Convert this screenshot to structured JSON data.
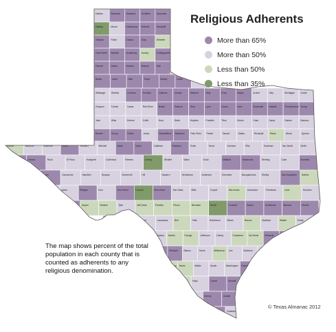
{
  "map": {
    "title": "Religious Adherents",
    "legend": [
      {
        "label": "More than 65%",
        "color": "#9d88ad"
      },
      {
        "label": "More than 50%",
        "color": "#d7d1e0"
      },
      {
        "label": "Less than 50%",
        "color": "#ccd8bc"
      },
      {
        "label": "Less than 35%",
        "color": "#819a6a"
      }
    ],
    "note": "The map shows percent of the total population in each county that is counted as adherents to any religious denomination.",
    "credit": "© Texas Almanac 2012",
    "colors": {
      "more_than_65": "#9d88ad",
      "more_than_50": "#d7d1e0",
      "less_than_50": "#ccd8bc",
      "less_than_35": "#819a6a",
      "county_border": "#ffffff",
      "state_outline": "#555555"
    },
    "county_labels": [
      {
        "name": "Dallam",
        "cat": 1
      },
      {
        "name": "Sherman",
        "cat": 0
      },
      {
        "name": "Hansford",
        "cat": 0
      },
      {
        "name": "Ochiltree",
        "cat": 0
      },
      {
        "name": "Lipscomb",
        "cat": 0
      },
      {
        "name": "Hartley",
        "cat": 3
      },
      {
        "name": "Moore",
        "cat": 1
      },
      {
        "name": "Hutchinson",
        "cat": 0
      },
      {
        "name": "Roberts",
        "cat": 0
      },
      {
        "name": "Hemphill",
        "cat": 0
      },
      {
        "name": "Oldham",
        "cat": 0
      },
      {
        "name": "Potter",
        "cat": 1
      },
      {
        "name": "Carson",
        "cat": 0
      },
      {
        "name": "Gray",
        "cat": 0
      },
      {
        "name": "Wheeler",
        "cat": 2
      },
      {
        "name": "Deaf Smith",
        "cat": 0
      },
      {
        "name": "Randall",
        "cat": 0
      },
      {
        "name": "Armstrong",
        "cat": 0
      },
      {
        "name": "Donley",
        "cat": 2
      },
      {
        "name": "Collingsworth",
        "cat": 0
      },
      {
        "name": "Parmer",
        "cat": 0
      },
      {
        "name": "Castro",
        "cat": 0
      },
      {
        "name": "Swisher",
        "cat": 0
      },
      {
        "name": "Briscoe",
        "cat": 0
      },
      {
        "name": "Hall",
        "cat": 0
      },
      {
        "name": "Childress",
        "cat": 2
      },
      {
        "name": "Bailey",
        "cat": 0
      },
      {
        "name": "Lamb",
        "cat": 0
      },
      {
        "name": "Hale",
        "cat": 0
      },
      {
        "name": "Floyd",
        "cat": 0
      },
      {
        "name": "Motley",
        "cat": 0
      },
      {
        "name": "Cottle",
        "cat": 0
      },
      {
        "name": "Hardeman",
        "cat": 1
      },
      {
        "name": "Wilbarger",
        "cat": 1
      },
      {
        "name": "Wichita",
        "cat": 1
      },
      {
        "name": "Cochran",
        "cat": 0
      },
      {
        "name": "Hockley",
        "cat": 0
      },
      {
        "name": "Lubbock",
        "cat": 0
      },
      {
        "name": "Crosby",
        "cat": 0
      },
      {
        "name": "Dickens",
        "cat": 0
      },
      {
        "name": "King",
        "cat": 0
      },
      {
        "name": "Knox",
        "cat": 0
      },
      {
        "name": "Baylor",
        "cat": 0
      },
      {
        "name": "Archer",
        "cat": 1
      },
      {
        "name": "Clay",
        "cat": 1
      },
      {
        "name": "Montague",
        "cat": 1
      },
      {
        "name": "Cooke",
        "cat": 1
      },
      {
        "name": "Grayson",
        "cat": 1
      },
      {
        "name": "Fannin",
        "cat": 1
      },
      {
        "name": "Lamar",
        "cat": 1
      },
      {
        "name": "Red River",
        "cat": 1
      },
      {
        "name": "Bowie",
        "cat": 0
      },
      {
        "name": "Yoakum",
        "cat": 0
      },
      {
        "name": "Terry",
        "cat": 0
      },
      {
        "name": "Lynn",
        "cat": 0
      },
      {
        "name": "Garza",
        "cat": 0
      },
      {
        "name": "Kent",
        "cat": 0
      },
      {
        "name": "Stonewall",
        "cat": 0
      },
      {
        "name": "Haskell",
        "cat": 0
      },
      {
        "name": "Throckmorton",
        "cat": 0
      },
      {
        "name": "Young",
        "cat": 0
      },
      {
        "name": "Jack",
        "cat": 1
      },
      {
        "name": "Wise",
        "cat": 1
      },
      {
        "name": "Denton",
        "cat": 1
      },
      {
        "name": "Collin",
        "cat": 1
      },
      {
        "name": "Hunt",
        "cat": 1
      },
      {
        "name": "Delta",
        "cat": 1
      },
      {
        "name": "Hopkins",
        "cat": 1
      },
      {
        "name": "Franklin",
        "cat": 1
      },
      {
        "name": "Titus",
        "cat": 1
      },
      {
        "name": "Morris",
        "cat": 1
      },
      {
        "name": "Cass",
        "cat": 1
      },
      {
        "name": "Camp",
        "cat": 1
      },
      {
        "name": "Gaines",
        "cat": 1
      },
      {
        "name": "Dawson",
        "cat": 1
      },
      {
        "name": "Borden",
        "cat": 0
      },
      {
        "name": "Scurry",
        "cat": 0
      },
      {
        "name": "Fisher",
        "cat": 0
      },
      {
        "name": "Jones",
        "cat": 1
      },
      {
        "name": "Shackelford",
        "cat": 0
      },
      {
        "name": "Stephens",
        "cat": 0
      },
      {
        "name": "Palo Pinto",
        "cat": 1
      },
      {
        "name": "Parker",
        "cat": 1
      },
      {
        "name": "Tarrant",
        "cat": 1
      },
      {
        "name": "Dallas",
        "cat": 1
      },
      {
        "name": "Rockwall",
        "cat": 1
      },
      {
        "name": "Rains",
        "cat": 2
      },
      {
        "name": "Wood",
        "cat": 1
      },
      {
        "name": "Upshur",
        "cat": 1
      },
      {
        "name": "Marion",
        "cat": 2
      },
      {
        "name": "Harrison",
        "cat": 1
      },
      {
        "name": "Andrews",
        "cat": 1
      },
      {
        "name": "Martin",
        "cat": 0
      },
      {
        "name": "Howard",
        "cat": 1
      },
      {
        "name": "Mitchell",
        "cat": 1
      },
      {
        "name": "Nolan",
        "cat": 0
      },
      {
        "name": "Taylor",
        "cat": 0
      },
      {
        "name": "Callahan",
        "cat": 1
      },
      {
        "name": "Eastland",
        "cat": 0
      },
      {
        "name": "Erath",
        "cat": 1
      },
      {
        "name": "Hood",
        "cat": 1
      },
      {
        "name": "Johnson",
        "cat": 1
      },
      {
        "name": "Ellis",
        "cat": 1
      },
      {
        "name": "Kaufman",
        "cat": 1
      },
      {
        "name": "Van Zandt",
        "cat": 1
      },
      {
        "name": "Smith",
        "cat": 1
      },
      {
        "name": "Gregg",
        "cat": 0
      },
      {
        "name": "Panola",
        "cat": 0
      },
      {
        "name": "Rusk",
        "cat": 1
      },
      {
        "name": "El Paso",
        "cat": 1
      },
      {
        "name": "Hudspeth",
        "cat": 1
      },
      {
        "name": "Culberson",
        "cat": 1
      },
      {
        "name": "Reeves",
        "cat": 1
      },
      {
        "name": "Loving",
        "cat": 3
      },
      {
        "name": "Winkler",
        "cat": 1
      },
      {
        "name": "Ward",
        "cat": 1
      },
      {
        "name": "Ector",
        "cat": 1
      },
      {
        "name": "Midland",
        "cat": 0
      },
      {
        "name": "Glasscock",
        "cat": 0
      },
      {
        "name": "Sterling",
        "cat": 1
      },
      {
        "name": "Coke",
        "cat": 1
      },
      {
        "name": "Runnels",
        "cat": 0
      },
      {
        "name": "Coleman",
        "cat": 1
      },
      {
        "name": "Brown",
        "cat": 0
      },
      {
        "name": "Comanche",
        "cat": 1
      },
      {
        "name": "Hamilton",
        "cat": 1
      },
      {
        "name": "Bosque",
        "cat": 1
      },
      {
        "name": "Somervell",
        "cat": 1
      },
      {
        "name": "Hill",
        "cat": 1
      },
      {
        "name": "Navarro",
        "cat": 1
      },
      {
        "name": "Henderson",
        "cat": 1
      },
      {
        "name": "Anderson",
        "cat": 1
      },
      {
        "name": "Cherokee",
        "cat": 1
      },
      {
        "name": "Nacogdoches",
        "cat": 1
      },
      {
        "name": "Shelby",
        "cat": 1
      },
      {
        "name": "San Augustine",
        "cat": 0
      },
      {
        "name": "Sabine",
        "cat": 2
      },
      {
        "name": "Crane",
        "cat": 1
      },
      {
        "name": "Upton",
        "cat": 1
      },
      {
        "name": "Reagan",
        "cat": 0
      },
      {
        "name": "Irion",
        "cat": 1
      },
      {
        "name": "Tom Green",
        "cat": 0
      },
      {
        "name": "Concho",
        "cat": 3
      },
      {
        "name": "McCulloch",
        "cat": 0
      },
      {
        "name": "San Saba",
        "cat": 1
      },
      {
        "name": "Mills",
        "cat": 1
      },
      {
        "name": "Coryell",
        "cat": 1
      },
      {
        "name": "McLennan",
        "cat": 2
      },
      {
        "name": "Limestone",
        "cat": 1
      },
      {
        "name": "Freestone",
        "cat": 1
      },
      {
        "name": "Leon",
        "cat": 2
      },
      {
        "name": "Houston",
        "cat": 1
      },
      {
        "name": "Angelina",
        "cat": 0
      },
      {
        "name": "Jasper",
        "cat": 2
      },
      {
        "name": "Newton",
        "cat": 2
      },
      {
        "name": "Tyler",
        "cat": 1
      },
      {
        "name": "Jeff Davis",
        "cat": 2
      },
      {
        "name": "Presidio",
        "cat": 2
      },
      {
        "name": "Pecos",
        "cat": 2
      },
      {
        "name": "Brewster",
        "cat": 2
      },
      {
        "name": "Terrell",
        "cat": 3
      },
      {
        "name": "Crockett",
        "cat": 0
      },
      {
        "name": "Sutton",
        "cat": 0
      },
      {
        "name": "Schleicher",
        "cat": 0
      },
      {
        "name": "Menard",
        "cat": 0
      },
      {
        "name": "Kimble",
        "cat": 0
      },
      {
        "name": "Mason",
        "cat": 0
      },
      {
        "name": "Llano",
        "cat": 0
      },
      {
        "name": "Burnet",
        "cat": 1
      },
      {
        "name": "Lampasas",
        "cat": 1
      },
      {
        "name": "Bell",
        "cat": 2
      },
      {
        "name": "Falls",
        "cat": 1
      },
      {
        "name": "Robertson",
        "cat": 1
      },
      {
        "name": "Milam",
        "cat": 1
      },
      {
        "name": "Brazos",
        "cat": 2
      },
      {
        "name": "Madison",
        "cat": 1
      },
      {
        "name": "Walker",
        "cat": 2
      },
      {
        "name": "Trinity",
        "cat": 1
      },
      {
        "name": "Polk",
        "cat": 1
      },
      {
        "name": "San Jacinto",
        "cat": 1
      },
      {
        "name": "Hardin",
        "cat": 2
      },
      {
        "name": "Orange",
        "cat": 2
      },
      {
        "name": "Jefferson",
        "cat": 1
      },
      {
        "name": "Liberty",
        "cat": 1
      },
      {
        "name": "Chambers",
        "cat": 2
      },
      {
        "name": "Val Verde",
        "cat": 2
      },
      {
        "name": "Edwards",
        "cat": 0
      },
      {
        "name": "Real",
        "cat": 0
      },
      {
        "name": "Kerr",
        "cat": 0
      },
      {
        "name": "Gillespie",
        "cat": 0
      },
      {
        "name": "Blanco",
        "cat": 1
      },
      {
        "name": "Travis",
        "cat": 1
      },
      {
        "name": "Williamson",
        "cat": 2
      },
      {
        "name": "Lee",
        "cat": 1
      },
      {
        "name": "Burleson",
        "cat": 1
      },
      {
        "name": "Grimes",
        "cat": 1
      },
      {
        "name": "Montgomery",
        "cat": 2
      },
      {
        "name": "Harris",
        "cat": 2
      },
      {
        "name": "Waller",
        "cat": 1
      },
      {
        "name": "Austin",
        "cat": 1
      },
      {
        "name": "Washington",
        "cat": 1
      },
      {
        "name": "Fayette",
        "cat": 0
      },
      {
        "name": "Bastrop",
        "cat": 2
      },
      {
        "name": "Hays",
        "cat": 1
      },
      {
        "name": "Comal",
        "cat": 0
      },
      {
        "name": "Kendall",
        "cat": 0
      },
      {
        "name": "Bandera",
        "cat": 1
      },
      {
        "name": "Kinney",
        "cat": 0
      },
      {
        "name": "Uvalde",
        "cat": 0
      },
      {
        "name": "Medina",
        "cat": 1
      },
      {
        "name": "Bexar",
        "cat": 0
      },
      {
        "name": "Guadalupe",
        "cat": 1
      },
      {
        "name": "Caldwell",
        "cat": 1
      },
      {
        "name": "Gonzales",
        "cat": 0
      },
      {
        "name": "Lavaca",
        "cat": 0
      },
      {
        "name": "Colorado",
        "cat": 0
      },
      {
        "name": "Wharton",
        "cat": 0
      },
      {
        "name": "Fort Bend",
        "cat": 2
      },
      {
        "name": "Brazoria",
        "cat": 1
      },
      {
        "name": "Galveston",
        "cat": 2
      },
      {
        "name": "Maverick",
        "cat": 3
      },
      {
        "name": "Zavala",
        "cat": 0
      },
      {
        "name": "Frio",
        "cat": 1
      },
      {
        "name": "Atascosa",
        "cat": 1
      },
      {
        "name": "Wilson",
        "cat": 1
      },
      {
        "name": "Karnes",
        "cat": 0
      },
      {
        "name": "DeWitt",
        "cat": 0
      },
      {
        "name": "Victoria",
        "cat": 0
      },
      {
        "name": "Jackson",
        "cat": 0
      },
      {
        "name": "Matagorda",
        "cat": 0
      },
      {
        "name": "Dimmit",
        "cat": 0
      },
      {
        "name": "La Salle",
        "cat": 1
      },
      {
        "name": "McMullen",
        "cat": 1
      },
      {
        "name": "Live Oak",
        "cat": 1
      },
      {
        "name": "Bee",
        "cat": 1
      },
      {
        "name": "Goliad",
        "cat": 0
      },
      {
        "name": "Refugio",
        "cat": 0
      },
      {
        "name": "Calhoun",
        "cat": 1
      },
      {
        "name": "Webb",
        "cat": 0
      },
      {
        "name": "Duval",
        "cat": 0
      },
      {
        "name": "Jim Wells",
        "cat": 0
      },
      {
        "name": "San Patricio",
        "cat": 1
      },
      {
        "name": "Aransas",
        "cat": 2
      },
      {
        "name": "Nueces",
        "cat": 0
      },
      {
        "name": "Kleberg",
        "cat": 1
      },
      {
        "name": "Zapata",
        "cat": 3
      },
      {
        "name": "Jim Hogg",
        "cat": 1
      },
      {
        "name": "Brooks",
        "cat": 0
      },
      {
        "name": "Kenedy",
        "cat": 1
      },
      {
        "name": "Starr",
        "cat": 3
      },
      {
        "name": "Hidalgo",
        "cat": 2
      },
      {
        "name": "Willacy",
        "cat": 3
      },
      {
        "name": "Cameron",
        "cat": 2
      }
    ]
  }
}
